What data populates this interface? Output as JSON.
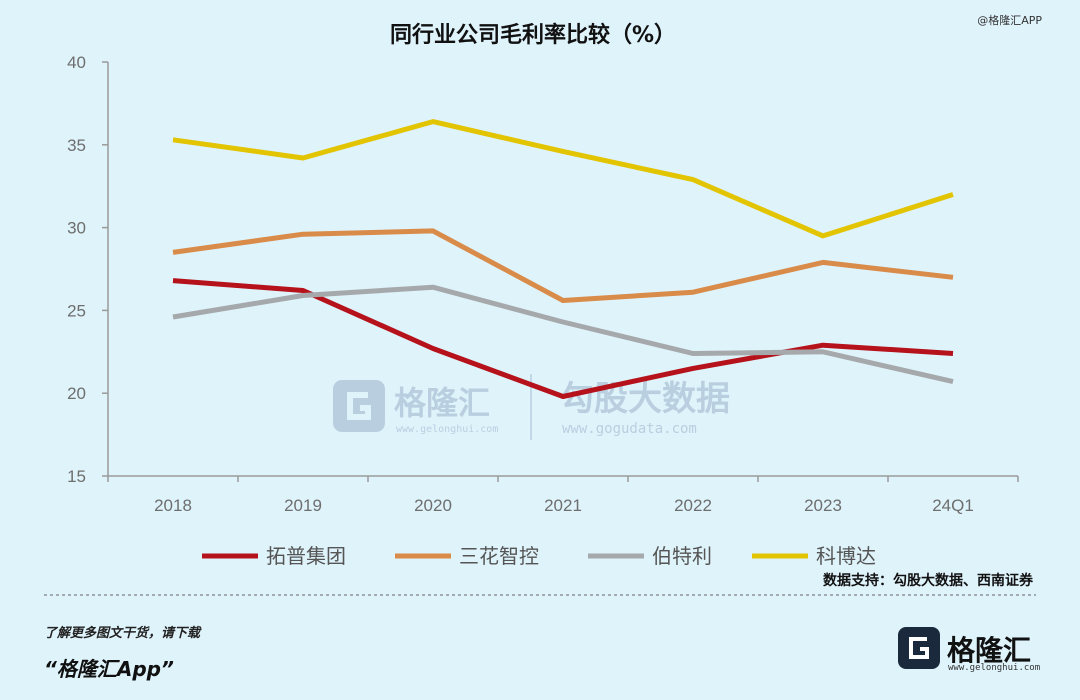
{
  "app_tag": "@格隆汇APP",
  "source": "数据支持：勾股大数据、西南证券",
  "footer": {
    "tagline": "了解更多图文干货，请下载",
    "app_name": "“格隆汇App”",
    "logo_name": "格隆汇",
    "logo_url": "www.gelonghui.com"
  },
  "watermark": {
    "left_name": "格隆汇",
    "left_url": "www.gelonghui.com",
    "right_name": "勾股大数据",
    "right_url": "www.gogudata.com"
  },
  "chart_data": {
    "type": "line",
    "title": "同行业公司毛利率比较（%）",
    "xlabel": "",
    "ylabel": "",
    "categories": [
      "2018",
      "2019",
      "2020",
      "2021",
      "2022",
      "2023",
      "24Q1"
    ],
    "ylim": [
      15,
      40
    ],
    "yticks": [
      15,
      20,
      25,
      30,
      35,
      40
    ],
    "grid": false,
    "legend_position": "bottom",
    "series": [
      {
        "name": "拓普集团",
        "color": "#b5121b",
        "values": [
          26.8,
          26.2,
          22.7,
          19.8,
          21.5,
          22.9,
          22.4
        ]
      },
      {
        "name": "三花智控",
        "color": "#d98b4a",
        "values": [
          28.5,
          29.6,
          29.8,
          25.6,
          26.1,
          27.9,
          27.0
        ]
      },
      {
        "name": "伯特利",
        "color": "#a6a9ac",
        "values": [
          24.6,
          25.9,
          26.4,
          24.3,
          22.4,
          22.5,
          20.7
        ]
      },
      {
        "name": "科博达",
        "color": "#e2c400",
        "values": [
          35.3,
          34.2,
          36.4,
          34.6,
          32.9,
          29.5,
          32.0
        ]
      }
    ]
  }
}
